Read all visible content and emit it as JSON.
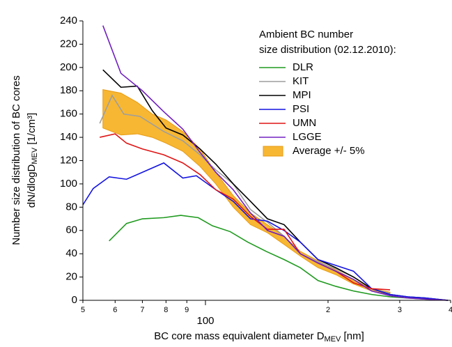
{
  "chart_data": {
    "type": "line",
    "xscale": "log",
    "x_label": {
      "main": "BC core mass equivalent diameter D",
      "sub": "MEV",
      "unit": " [nm]"
    },
    "y_label": {
      "line1": "Number size distribution of BC cores",
      "main": "dN/dlogD",
      "sub": "MEV",
      "unit": " [1/cm³]"
    },
    "legend_title": [
      "Ambient BC number",
      "size distribution (02.12.2010):"
    ],
    "xlim": [
      50,
      400
    ],
    "xticks": [
      {
        "value": 50,
        "label": "5"
      },
      {
        "value": 60,
        "label": "6"
      },
      {
        "value": 70,
        "label": "7"
      },
      {
        "value": 80,
        "label": "8"
      },
      {
        "value": 90,
        "label": "9"
      },
      100,
      {
        "value": 200,
        "label": "2"
      },
      {
        "value": 300,
        "label": "3"
      },
      {
        "value": 400,
        "label": "4"
      }
    ],
    "ylim": [
      0,
      240
    ],
    "yticks": [
      0,
      20,
      40,
      60,
      80,
      100,
      120,
      140,
      160,
      180,
      200,
      220,
      240
    ],
    "band": {
      "name": "Average +/- 5%",
      "color": "#f7b733",
      "edge": "#e89a10",
      "x": [
        56,
        62,
        68,
        74,
        80,
        88,
        97,
        106,
        117,
        129,
        142,
        156,
        171,
        189,
        209,
        231,
        256,
        284
      ],
      "upper": [
        181,
        178,
        170,
        160,
        155,
        145,
        130,
        110,
        90,
        75,
        65,
        55,
        42,
        34,
        26,
        18,
        10,
        7
      ],
      "lower": [
        148,
        142,
        143,
        140,
        135,
        128,
        115,
        100,
        80,
        65,
        58,
        48,
        38,
        28,
        22,
        14,
        8,
        5
      ]
    },
    "series": [
      {
        "name": "DLR",
        "color": "#1f9a1f",
        "x": [
          58,
          64,
          70,
          79,
          87,
          96,
          104,
          115,
          127,
          141,
          156,
          171,
          189,
          209,
          231,
          256,
          284,
          314,
          347,
          394
        ],
        "values": [
          51,
          66,
          70,
          71,
          73,
          71,
          64,
          59,
          50,
          42,
          35,
          28,
          17,
          12,
          8,
          5,
          3,
          2,
          1,
          0
        ]
      },
      {
        "name": "KIT",
        "color": "#9e9e9e",
        "x": [
          55,
          59,
          63,
          69,
          79,
          88,
          97,
          106,
          117,
          129,
          142,
          156,
          171,
          189,
          209,
          231,
          256,
          284
        ],
        "values": [
          152,
          176,
          160,
          158,
          145,
          137,
          125,
          112,
          100,
          78,
          67,
          55,
          40,
          33,
          27,
          20,
          10,
          6
        ]
      },
      {
        "name": "MPI",
        "color": "#000000",
        "x": [
          56,
          62,
          68,
          74,
          80,
          88,
          97,
          106,
          117,
          129,
          142,
          156,
          171,
          189,
          209,
          231,
          256,
          284,
          314,
          347,
          394
        ],
        "values": [
          198,
          183,
          184,
          163,
          148,
          142,
          130,
          117,
          100,
          85,
          70,
          65,
          50,
          35,
          28,
          20,
          10,
          5,
          3,
          2,
          0
        ]
      },
      {
        "name": "PSI",
        "color": "#1414e0",
        "x": [
          50,
          53,
          58,
          64,
          79,
          88,
          95,
          106,
          117,
          129,
          142,
          156,
          171,
          189,
          209,
          231,
          256,
          284,
          314,
          347,
          394
        ],
        "values": [
          82,
          96,
          106,
          104,
          118,
          105,
          107,
          95,
          85,
          70,
          68,
          60,
          50,
          35,
          30,
          25,
          10,
          5,
          3,
          2,
          0
        ]
      },
      {
        "name": "UMN",
        "color": "#e01414",
        "x": [
          55,
          60,
          64,
          70,
          79,
          88,
          97,
          106,
          117,
          129,
          142,
          156,
          171,
          189,
          209,
          231,
          256,
          284
        ],
        "values": [
          140,
          143,
          135,
          130,
          125,
          118,
          108,
          95,
          87,
          72,
          61,
          61,
          40,
          32,
          25,
          15,
          10,
          9
        ]
      },
      {
        "name": "LGGE",
        "color": "#7020c0",
        "x": [
          56,
          62,
          70,
          79,
          88,
          97,
          106,
          117,
          129,
          142,
          156,
          171,
          189,
          209,
          231,
          256,
          284,
          314,
          347,
          394
        ],
        "values": [
          236,
          195,
          180,
          162,
          147,
          127,
          110,
          95,
          75,
          60,
          55,
          40,
          32,
          25,
          18,
          8,
          4,
          2,
          1,
          0
        ]
      }
    ]
  }
}
